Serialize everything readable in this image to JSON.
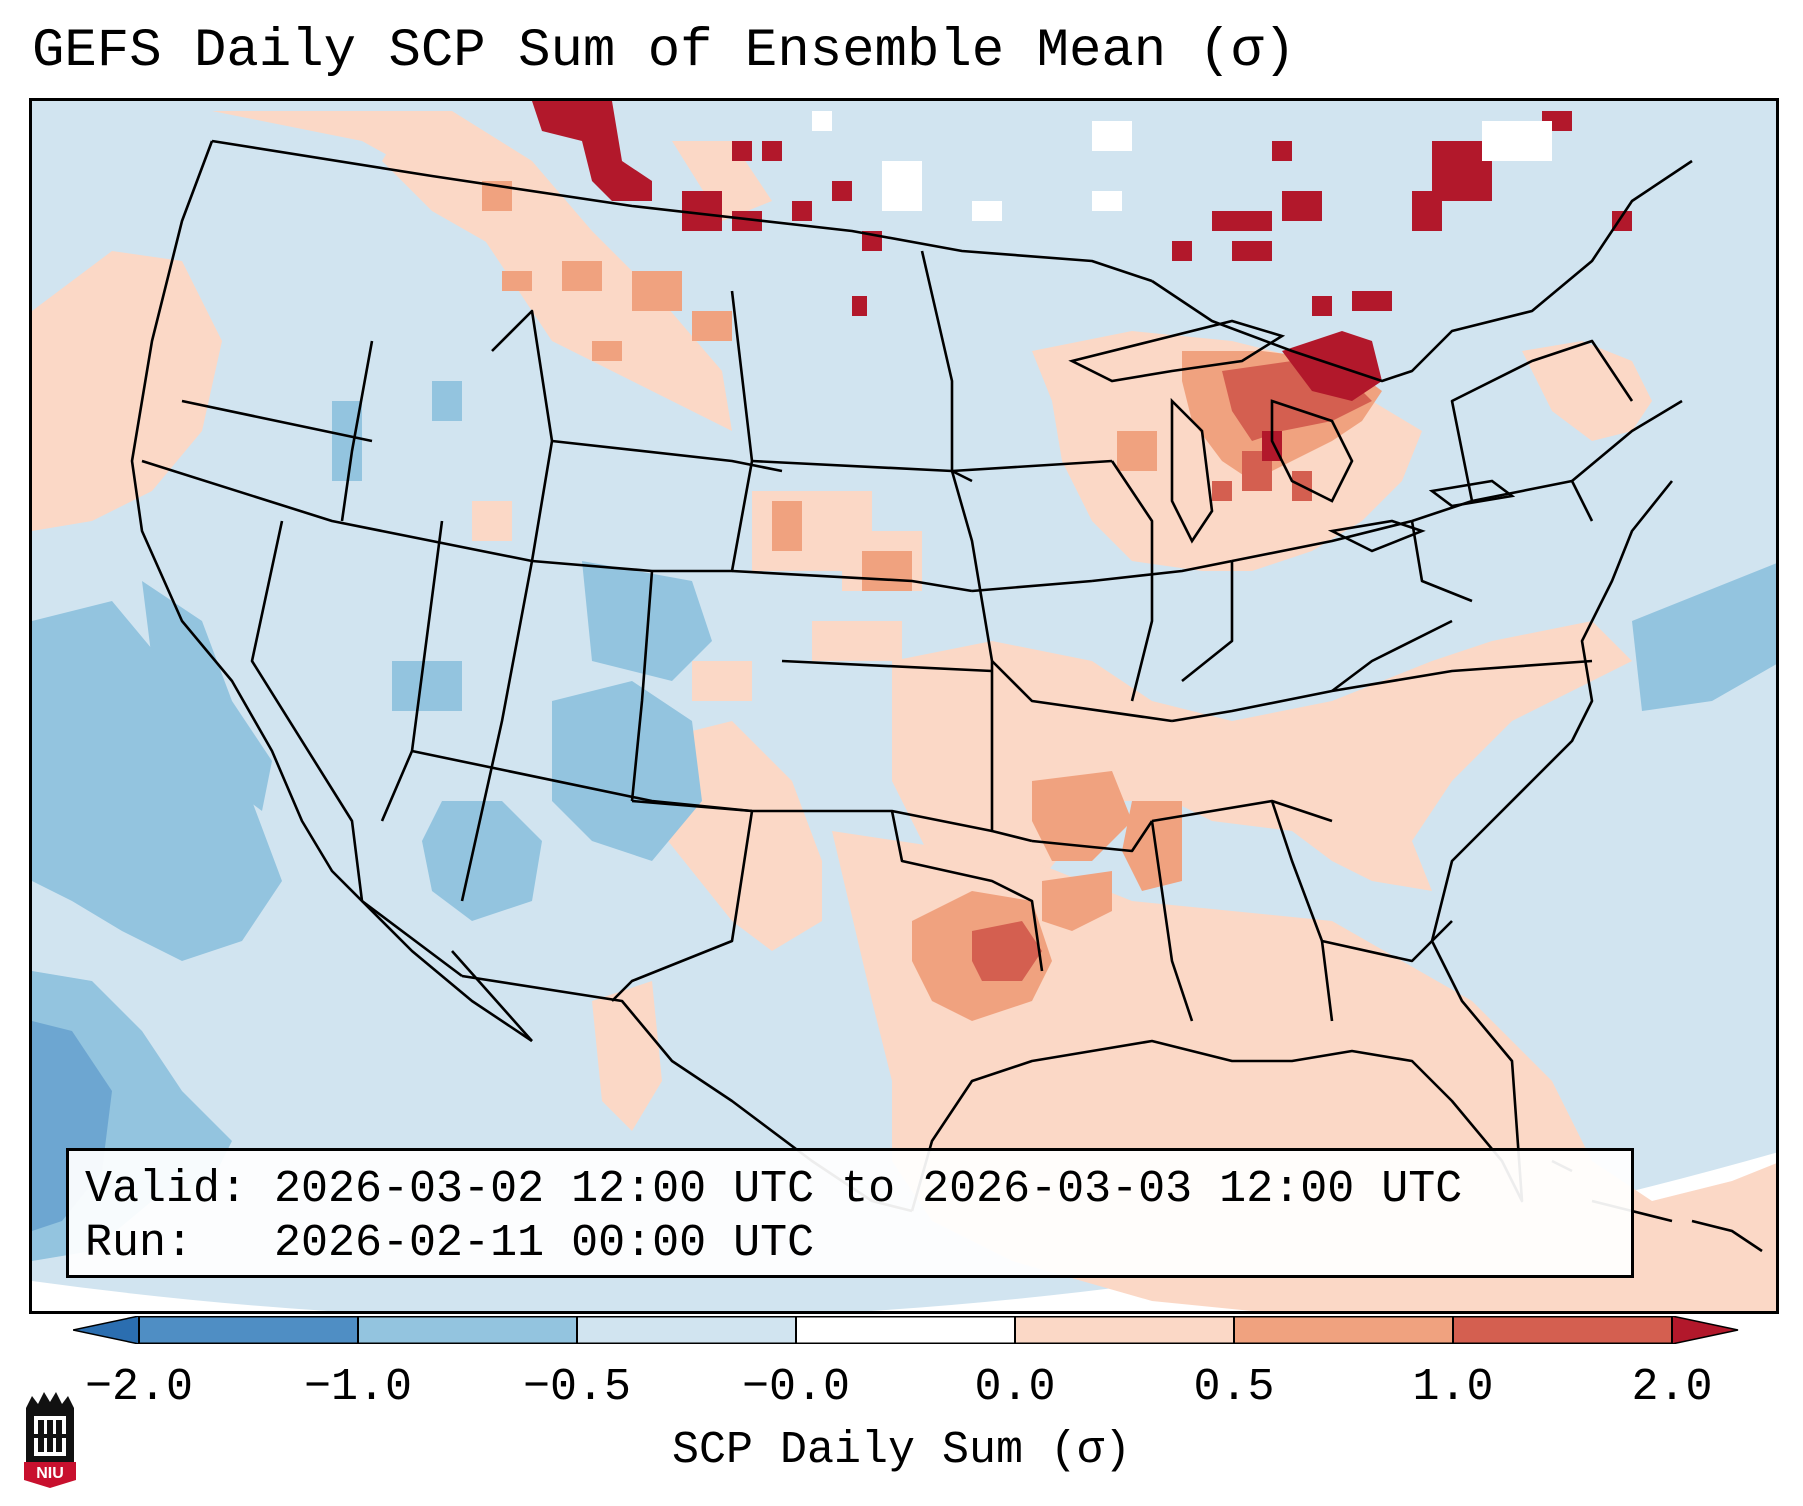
{
  "title": "GEFS Daily SCP Sum of Ensemble Mean (σ)",
  "info": {
    "valid_line": "Valid: 2026-03-02 12:00 UTC to 2026-03-03 12:00 UTC",
    "run_line": "Run:   2026-02-11 00:00 UTC"
  },
  "colorbar": {
    "label": "SCP Daily Sum (σ)",
    "ticks": [
      "−2.0",
      "−1.0",
      "−0.5",
      "−0.0",
      "0.0",
      "0.5",
      "1.0",
      "2.0"
    ],
    "bins": [
      {
        "range": "< -2.0",
        "color": "#2b6eb0"
      },
      {
        "range": "-2.0 to -1.0",
        "color": "#4f8ec4"
      },
      {
        "range": "-1.0 to -0.5",
        "color": "#93c4df"
      },
      {
        "range": "-0.5 to -0.0",
        "color": "#d1e4f0"
      },
      {
        "range": "-0.0 to 0.0",
        "color": "#ffffff"
      },
      {
        "range": "0.0 to 0.5",
        "color": "#fbd8c6"
      },
      {
        "range": "0.5 to 1.0",
        "color": "#f0a27f"
      },
      {
        "range": "1.0 to 2.0",
        "color": "#d45f50"
      },
      {
        "range": "> 2.0",
        "color": "#b2182b"
      }
    ]
  },
  "logo": {
    "text": "NIU",
    "color": "#c8102e"
  },
  "map": {
    "region": "Contiguous United States",
    "background_anomaly_color": "#d1e4f0",
    "areas": [
      {
        "name": "US Northwest / Pacific coast",
        "category": "0.0 to 0.5",
        "color": "#fbd8c6"
      },
      {
        "name": "Southern Canada prairies",
        "category": "> 2.0",
        "color": "#b2182b"
      },
      {
        "name": "Northern Ontario",
        "category": "> 2.0",
        "color": "#b2182b"
      },
      {
        "name": "Northern Montana",
        "category": "0.5 to 1.0",
        "color": "#f0a27f"
      },
      {
        "name": "Michigan / Great Lakes",
        "category": "1.0 to 2.0",
        "color": "#d45f50"
      },
      {
        "name": "Arkansas / Louisiana / Mississippi",
        "category": "0.5 to 1.0",
        "color": "#f0a27f"
      },
      {
        "name": "East Texas",
        "category": "1.0 to 2.0",
        "color": "#d45f50"
      },
      {
        "name": "Southeast US",
        "category": "0.0 to 0.5",
        "color": "#fbd8c6"
      },
      {
        "name": "Gulf of Mexico",
        "category": "0.0 to 0.5",
        "color": "#fbd8c6"
      },
      {
        "name": "Arizona / New Mexico / Colorado",
        "category": "-1.0 to -0.5",
        "color": "#93c4df"
      },
      {
        "name": "California coast",
        "category": "-1.0 to -0.5",
        "color": "#93c4df"
      },
      {
        "name": "Eastern Pacific",
        "category": "-2.0 to -1.0",
        "color": "#4f8ec4"
      },
      {
        "name": "Western Atlantic",
        "category": "-1.0 to -0.5",
        "color": "#93c4df"
      }
    ]
  }
}
